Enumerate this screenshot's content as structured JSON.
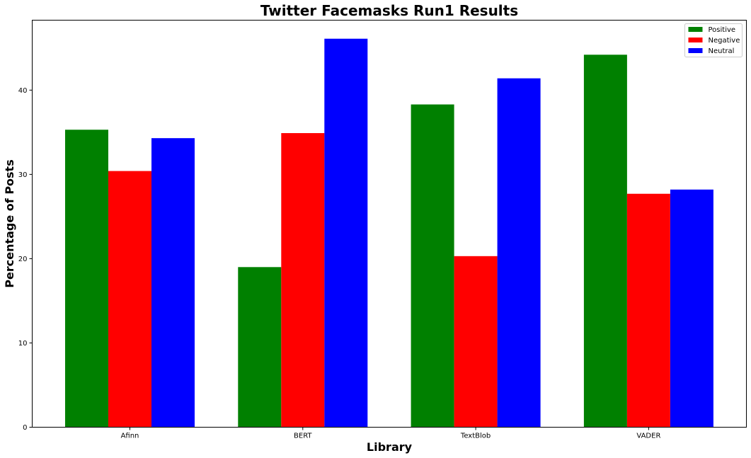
{
  "chart_data": {
    "type": "bar",
    "title": "Twitter Facemasks Run1 Results",
    "xlabel": "Library",
    "ylabel": "Percentage of Posts",
    "categories": [
      "Afinn",
      "BERT",
      "TextBlob",
      "VADER"
    ],
    "series": [
      {
        "name": "Positive",
        "color": "#008000",
        "values": [
          35.3,
          19.0,
          38.3,
          44.2
        ]
      },
      {
        "name": "Negative",
        "color": "#ff0000",
        "values": [
          30.4,
          34.9,
          20.3,
          27.7
        ]
      },
      {
        "name": "Neutral",
        "color": "#0000ff",
        "values": [
          34.3,
          46.1,
          41.4,
          28.2
        ]
      }
    ],
    "ylim": [
      0,
      48.3
    ],
    "yticks": [
      "0",
      "10",
      "20",
      "30",
      "40"
    ],
    "grid": false,
    "legend": "top-right"
  }
}
